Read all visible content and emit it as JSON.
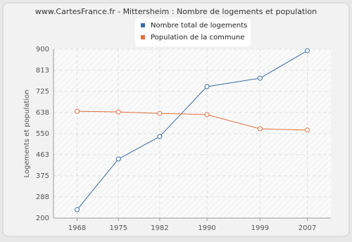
{
  "chart_data": {
    "type": "line",
    "title": "www.CartesFrance.fr - Mittersheim : Nombre de logements et population",
    "y_label": "Logements et population",
    "x": [
      1968,
      1975,
      1982,
      1990,
      1999,
      2007
    ],
    "xlim": [
      1964,
      2011
    ],
    "xticks": [
      1968,
      1975,
      1982,
      1990,
      1999,
      2007
    ],
    "ylim": [
      200,
      900
    ],
    "yticks": [
      200,
      288,
      375,
      463,
      550,
      638,
      725,
      813,
      900
    ],
    "grid": true,
    "legend": "top",
    "series": [
      {
        "name": "Nombre total de logements",
        "color": "#3a6ea5",
        "values": [
          235,
          445,
          538,
          745,
          780,
          894
        ]
      },
      {
        "name": "Population de la commune",
        "color": "#e07040",
        "values": [
          643,
          640,
          634,
          629,
          570,
          565
        ]
      }
    ]
  }
}
